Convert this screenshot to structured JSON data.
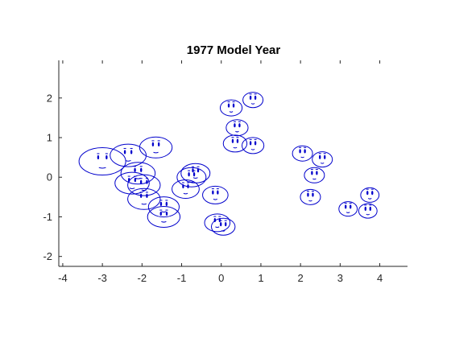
{
  "chart_data": {
    "type": "scatter",
    "title": "1977 Model Year",
    "xlabel": "",
    "ylabel": "",
    "xlim": [
      -4.1,
      4.7
    ],
    "ylim": [
      -2.25,
      2.95
    ],
    "x_ticks": [
      -4,
      -3,
      -2,
      -1,
      0,
      1,
      2,
      3,
      4
    ],
    "y_ticks": [
      -2,
      -1,
      0,
      1,
      2
    ],
    "grid": false,
    "marker": "chernoff-face",
    "color": "#0000cc",
    "points": [
      {
        "x": -3.0,
        "y": 0.4,
        "size": 1.0
      },
      {
        "x": -2.35,
        "y": 0.55,
        "size": 0.7
      },
      {
        "x": -1.65,
        "y": 0.75,
        "size": 0.6
      },
      {
        "x": -2.1,
        "y": 0.1,
        "size": 0.65
      },
      {
        "x": -2.25,
        "y": -0.15,
        "size": 0.65
      },
      {
        "x": -1.95,
        "y": -0.2,
        "size": 0.6
      },
      {
        "x": -1.95,
        "y": -0.55,
        "size": 0.6
      },
      {
        "x": -1.45,
        "y": -0.75,
        "size": 0.55
      },
      {
        "x": -1.45,
        "y": -1.0,
        "size": 0.6
      },
      {
        "x": -0.65,
        "y": 0.1,
        "size": 0.5
      },
      {
        "x": -0.75,
        "y": 0.0,
        "size": 0.5
      },
      {
        "x": -0.9,
        "y": -0.3,
        "size": 0.45
      },
      {
        "x": -0.15,
        "y": -0.45,
        "size": 0.4
      },
      {
        "x": -0.1,
        "y": -1.15,
        "size": 0.4
      },
      {
        "x": 0.05,
        "y": -1.25,
        "size": 0.35
      },
      {
        "x": 0.25,
        "y": 1.75,
        "size": 0.3
      },
      {
        "x": 0.8,
        "y": 1.95,
        "size": 0.25
      },
      {
        "x": 0.4,
        "y": 1.25,
        "size": 0.3
      },
      {
        "x": 0.35,
        "y": 0.85,
        "size": 0.35
      },
      {
        "x": 0.8,
        "y": 0.8,
        "size": 0.3
      },
      {
        "x": 2.05,
        "y": 0.6,
        "size": 0.25
      },
      {
        "x": 2.55,
        "y": 0.45,
        "size": 0.25
      },
      {
        "x": 2.35,
        "y": 0.05,
        "size": 0.25
      },
      {
        "x": 2.25,
        "y": -0.5,
        "size": 0.25
      },
      {
        "x": 3.75,
        "y": -0.45,
        "size": 0.2
      },
      {
        "x": 3.2,
        "y": -0.8,
        "size": 0.2
      },
      {
        "x": 3.7,
        "y": -0.85,
        "size": 0.2
      }
    ]
  }
}
